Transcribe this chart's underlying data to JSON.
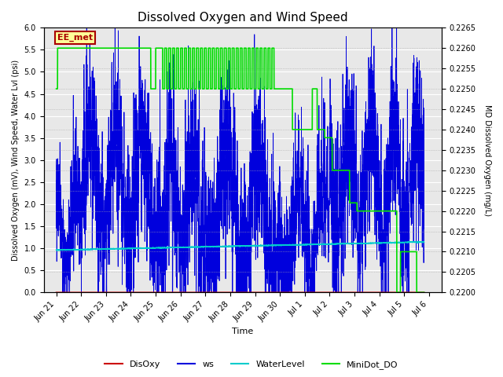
{
  "title": "Dissolved Oxygen and Wind Speed",
  "ylabel_left": "Dissolved Oxygen (mV), Wind Speed, Water Lvl (psi)",
  "ylabel_right": "MD Dissolved Oxygen (mg/L)",
  "xlabel": "Time",
  "ylim_left": [
    0.0,
    6.0
  ],
  "ylim_right": [
    0.22,
    0.2265
  ],
  "yticks_left": [
    0.0,
    0.5,
    1.0,
    1.5,
    2.0,
    2.5,
    3.0,
    3.5,
    4.0,
    4.5,
    5.0,
    5.5,
    6.0
  ],
  "yticks_right": [
    0.22,
    0.2205,
    0.221,
    0.2215,
    0.222,
    0.2225,
    0.223,
    0.2235,
    0.224,
    0.2245,
    0.225,
    0.2255,
    0.226,
    0.2265
  ],
  "background_color": "#e8e8e8",
  "annotation_text": "EE_met",
  "annotation_color": "#aa0000",
  "annotation_bg": "#ffff99",
  "colors": {
    "DisOxy": "#cc0000",
    "ws": "#0000dd",
    "WaterLevel": "#00cccc",
    "MiniDot_DO": "#00dd00"
  },
  "xtick_positions": [
    1,
    2,
    3,
    4,
    5,
    6,
    7,
    8,
    9,
    10,
    11,
    12,
    13,
    14,
    15,
    16
  ],
  "xtick_labels": [
    "Jun 21",
    "Jun 22",
    "Jun 23",
    "Jun 24",
    "Jun 25",
    "Jun 26",
    "Jun 27",
    "Jun 28",
    "Jun 29",
    "Jun 30",
    "Jul 1",
    "Jul 2",
    "Jul 3",
    "Jul 4",
    "Jul 5",
    "Jul 6"
  ],
  "xlim": [
    0.5,
    16.5
  ]
}
